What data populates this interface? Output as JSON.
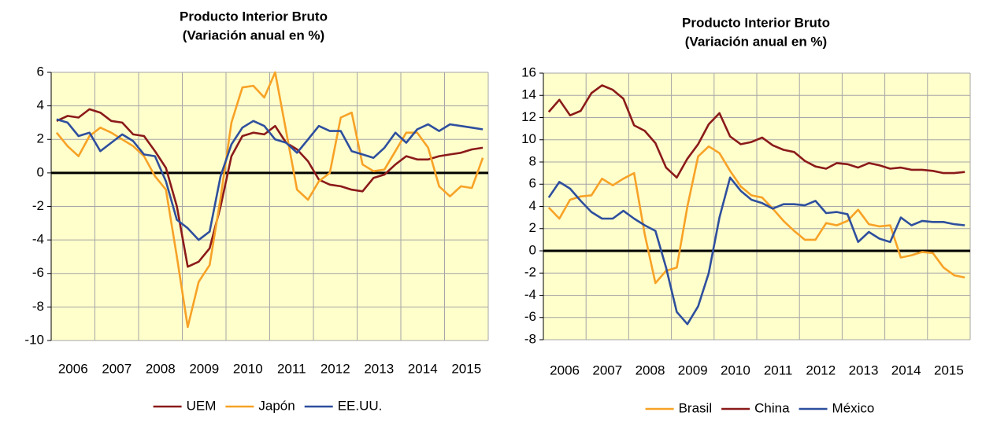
{
  "chart_data": [
    {
      "type": "line",
      "title": "Producto Interior Bruto",
      "subtitle": "(Variación anual en %)",
      "categories": [
        null,
        "2006",
        null,
        null,
        null,
        "2007",
        null,
        null,
        null,
        "2008",
        null,
        null,
        null,
        "2009",
        null,
        null,
        null,
        "2010",
        null,
        null,
        null,
        "2011",
        null,
        null,
        null,
        "2012",
        null,
        null,
        null,
        "2013",
        null,
        null,
        null,
        "2014",
        null,
        null,
        null,
        "2015",
        null,
        null
      ],
      "ylim": [
        -10,
        6
      ],
      "yticks": [
        -10,
        -8,
        -6,
        -4,
        -2,
        0,
        2,
        4,
        6
      ],
      "grid": true,
      "series": [
        {
          "name": "UEM",
          "color": "#8b1a1a",
          "values": [
            3.1,
            3.4,
            3.3,
            3.8,
            3.6,
            3.1,
            3.0,
            2.3,
            2.2,
            1.3,
            0.3,
            -2.0,
            -5.6,
            -5.3,
            -4.5,
            -2.0,
            1.0,
            2.2,
            2.4,
            2.3,
            2.8,
            1.8,
            1.4,
            0.7,
            -0.4,
            -0.7,
            -0.8,
            -1.0,
            -1.1,
            -0.3,
            -0.1,
            0.5,
            1.0,
            0.8,
            0.8,
            1.0,
            1.1,
            1.2,
            1.4,
            1.5
          ]
        },
        {
          "name": "Japón",
          "color": "#f7a226",
          "values": [
            2.4,
            1.6,
            1.0,
            2.2,
            2.7,
            2.4,
            2.0,
            1.6,
            1.0,
            -0.2,
            -1.0,
            -5.0,
            -9.2,
            -6.5,
            -5.5,
            -1.5,
            3.0,
            5.1,
            5.2,
            4.5,
            6.0,
            2.5,
            -1.0,
            -1.6,
            -0.5,
            0.0,
            3.3,
            3.6,
            0.5,
            0.1,
            0.2,
            1.3,
            2.4,
            2.4,
            1.5,
            -0.8,
            -1.4,
            -0.8,
            -0.9,
            0.9
          ]
        },
        {
          "name": "EE.UU.",
          "color": "#2e4f9e",
          "values": [
            3.2,
            3.0,
            2.2,
            2.4,
            1.3,
            1.8,
            2.3,
            1.9,
            1.1,
            1.0,
            -0.5,
            -2.8,
            -3.3,
            -4.0,
            -3.5,
            -0.2,
            1.7,
            2.7,
            3.1,
            2.8,
            2.0,
            1.8,
            1.2,
            2.0,
            2.8,
            2.5,
            2.5,
            1.3,
            1.1,
            0.9,
            1.5,
            2.4,
            1.8,
            2.6,
            2.9,
            2.5,
            2.9,
            2.8,
            2.7,
            2.6
          ]
        }
      ]
    },
    {
      "type": "line",
      "title": "Producto Interior Bruto",
      "subtitle": "(Variación anual en %)",
      "categories": [
        null,
        "2006",
        null,
        null,
        null,
        "2007",
        null,
        null,
        null,
        "2008",
        null,
        null,
        null,
        "2009",
        null,
        null,
        null,
        "2010",
        null,
        null,
        null,
        "2011",
        null,
        null,
        null,
        "2012",
        null,
        null,
        null,
        "2013",
        null,
        null,
        null,
        "2014",
        null,
        null,
        null,
        "2015",
        null,
        null
      ],
      "ylim": [
        -8,
        16
      ],
      "yticks": [
        -8,
        -6,
        -4,
        -2,
        0,
        2,
        4,
        6,
        8,
        10,
        12,
        14,
        16
      ],
      "grid": true,
      "series": [
        {
          "name": "Brasil",
          "color": "#f7a226",
          "values": [
            3.9,
            2.9,
            4.6,
            4.9,
            5.0,
            6.5,
            5.9,
            6.5,
            7.0,
            1.5,
            -2.9,
            -1.8,
            -1.5,
            4.0,
            8.5,
            9.4,
            8.8,
            7.2,
            5.8,
            5.0,
            4.8,
            3.8,
            2.7,
            1.8,
            1.0,
            1.0,
            2.5,
            2.3,
            2.7,
            3.7,
            2.4,
            2.2,
            2.3,
            -0.6,
            -0.4,
            -0.1,
            -0.2,
            -1.5,
            -2.2,
            -2.4
          ]
        },
        {
          "name": "China",
          "color": "#8b1a1a",
          "values": [
            12.5,
            13.6,
            12.2,
            12.6,
            14.2,
            14.9,
            14.5,
            13.7,
            11.3,
            10.8,
            9.7,
            7.5,
            6.6,
            8.3,
            9.6,
            11.4,
            12.4,
            10.3,
            9.6,
            9.8,
            10.2,
            9.5,
            9.1,
            8.9,
            8.1,
            7.6,
            7.4,
            7.9,
            7.8,
            7.5,
            7.9,
            7.7,
            7.4,
            7.5,
            7.3,
            7.3,
            7.2,
            7.0,
            7.0,
            7.1
          ]
        },
        {
          "name": "México",
          "color": "#2e4f9e",
          "values": [
            4.8,
            6.2,
            5.6,
            4.5,
            3.5,
            2.9,
            2.9,
            3.6,
            2.9,
            2.3,
            1.8,
            -1.5,
            -5.5,
            -6.6,
            -5.0,
            -2.0,
            3.0,
            6.6,
            5.4,
            4.6,
            4.3,
            3.8,
            4.2,
            4.2,
            4.1,
            4.5,
            3.4,
            3.5,
            3.3,
            0.8,
            1.7,
            1.1,
            0.8,
            3.0,
            2.3,
            2.7,
            2.6,
            2.6,
            2.4,
            2.3
          ]
        }
      ]
    }
  ]
}
